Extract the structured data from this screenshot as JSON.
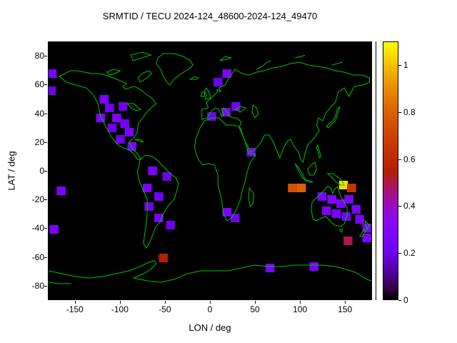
{
  "title": "SRMTID / TECU 2024-124_48600-2024-124_49470",
  "axes": {
    "xlabel": "LON / deg",
    "ylabel": "LAT / deg",
    "x_ticks": [
      -150,
      -100,
      -50,
      0,
      50,
      100,
      150
    ],
    "y_ticks": [
      -80,
      -60,
      -40,
      -20,
      0,
      20,
      40,
      60,
      80
    ],
    "xlim": [
      -180,
      180
    ],
    "ylim": [
      -90,
      90
    ]
  },
  "colorbar": {
    "ticks": [
      0,
      0.2,
      0.4,
      0.6,
      0.8,
      1
    ],
    "min": 0,
    "max": 1.1
  },
  "colors": {
    "background": "#ffffff",
    "plot_background": "#000000",
    "coastline": "#00c000",
    "text": "#000000"
  },
  "chart_data": {
    "type": "heatmap",
    "title": "SRMTID / TECU 2024-124_48600-2024-124_49470",
    "xlabel": "LON / deg",
    "ylabel": "LAT / deg",
    "xlim": [
      -180,
      180
    ],
    "ylim": [
      -90,
      90
    ],
    "units": "TECU",
    "cbar_range": [
      0,
      1.1
    ],
    "cell_size_deg": {
      "lon": 10,
      "lat": 6
    },
    "palette": "gnuplot default pm3d (black-violet-red-orange-yellow)",
    "legend_position": "right colorbar",
    "grid": false,
    "cells": [
      {
        "lon": -176,
        "lat": 68,
        "value": 0.25
      },
      {
        "lon": -177,
        "lat": 56,
        "value": 0.2
      },
      {
        "lon": -118,
        "lat": 50,
        "value": 0.25
      },
      {
        "lon": -112,
        "lat": 44,
        "value": 0.22
      },
      {
        "lon": -97,
        "lat": 45,
        "value": 0.2
      },
      {
        "lon": -122,
        "lat": 37,
        "value": 0.25
      },
      {
        "lon": -104,
        "lat": 37,
        "value": 0.28
      },
      {
        "lon": -95,
        "lat": 33,
        "value": 0.22
      },
      {
        "lon": -109,
        "lat": 30,
        "value": 0.2
      },
      {
        "lon": -90,
        "lat": 27,
        "value": 0.25
      },
      {
        "lon": -100,
        "lat": 22,
        "value": 0.2
      },
      {
        "lon": -87,
        "lat": 17,
        "value": 0.25
      },
      {
        "lon": 19,
        "lat": 68,
        "value": 0.25
      },
      {
        "lon": 9,
        "lat": 62,
        "value": 0.2
      },
      {
        "lon": 29,
        "lat": 45,
        "value": 0.22
      },
      {
        "lon": 18,
        "lat": 41,
        "value": 0.25
      },
      {
        "lon": 2,
        "lat": 38,
        "value": 0.2
      },
      {
        "lon": 46,
        "lat": 13,
        "value": 0.22
      },
      {
        "lon": -64,
        "lat": 0,
        "value": 0.25
      },
      {
        "lon": -48,
        "lat": -4,
        "value": 0.2
      },
      {
        "lon": -70,
        "lat": -12,
        "value": 0.25
      },
      {
        "lon": -57,
        "lat": -18,
        "value": 0.22
      },
      {
        "lon": -68,
        "lat": -25,
        "value": 0.2
      },
      {
        "lon": -57,
        "lat": -33,
        "value": 0.25
      },
      {
        "lon": -44,
        "lat": -38,
        "value": 0.2
      },
      {
        "lon": -166,
        "lat": -14,
        "value": 0.25
      },
      {
        "lon": -174,
        "lat": -41,
        "value": 0.25
      },
      {
        "lon": 19,
        "lat": -29,
        "value": 0.25
      },
      {
        "lon": 28,
        "lat": -33,
        "value": 0.2
      },
      {
        "lon": 92,
        "lat": -12,
        "value": 0.75
      },
      {
        "lon": 102,
        "lat": -12,
        "value": 0.8
      },
      {
        "lon": 149,
        "lat": -10,
        "value": 1.05
      },
      {
        "lon": 158,
        "lat": -12,
        "value": 0.65
      },
      {
        "lon": 125,
        "lat": -18,
        "value": 0.25
      },
      {
        "lon": 136,
        "lat": -20,
        "value": 0.28
      },
      {
        "lon": 146,
        "lat": -23,
        "value": 0.25
      },
      {
        "lon": 155,
        "lat": -20,
        "value": 0.25
      },
      {
        "lon": 130,
        "lat": -28,
        "value": 0.25
      },
      {
        "lon": 141,
        "lat": -30,
        "value": 0.25
      },
      {
        "lon": 152,
        "lat": -32,
        "value": 0.22
      },
      {
        "lon": 163,
        "lat": -27,
        "value": 0.25
      },
      {
        "lon": 167,
        "lat": -34,
        "value": 0.25
      },
      {
        "lon": 175,
        "lat": -40,
        "value": 0.25
      },
      {
        "lon": 154,
        "lat": -49,
        "value": 0.5
      },
      {
        "lon": 175,
        "lat": -47,
        "value": 0.25
      },
      {
        "lon": -52,
        "lat": -61,
        "value": 0.55
      },
      {
        "lon": 67,
        "lat": -68,
        "value": 0.25
      },
      {
        "lon": 116,
        "lat": -67,
        "value": 0.25
      }
    ]
  }
}
